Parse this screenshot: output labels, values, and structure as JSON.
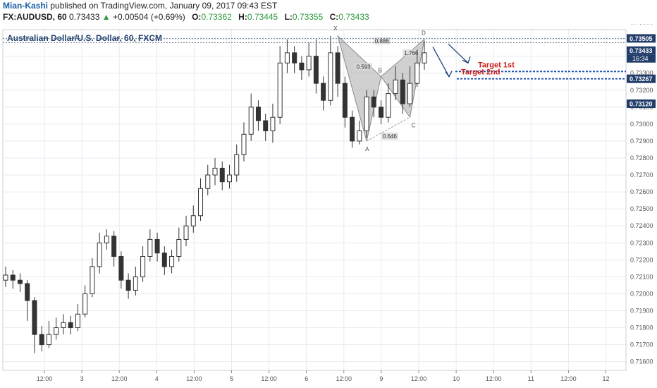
{
  "header": {
    "author": "Mian-Kashi",
    "published": "published on TradingView.com, January 09, 2017 09:43 EST",
    "symbol": "FX:AUDUSD, 60",
    "last": "0.73433",
    "arrow": "▲",
    "change": "+0.00504 (+0.69%)",
    "o_label": "O:",
    "o": "0.73362",
    "h_label": "H:",
    "h": "0.73445",
    "l_label": "L:",
    "l": "0.73355",
    "c_label": "C:",
    "c": "0.73433"
  },
  "colors": {
    "grid": "#e6ebf0",
    "candle_body": "#ffffff",
    "candle_outline": "#333333",
    "pattern_fill": "#a9a9a9",
    "target_line": "#1e4fb0",
    "annotation_text": "#d0201e",
    "arrow": "#1c3f78",
    "price_tag": "#223d6a",
    "axis_text": "#555555"
  },
  "chart_data": {
    "type": "candlestick",
    "title": "Australian Dollar/U.S. Dollar, 60, FXCM",
    "ylim": [
      0.7164,
      0.7354
    ],
    "y_ticks": [
      "0.73600",
      "0.73500",
      "0.73400",
      "0.73300",
      "0.73200",
      "0.73100",
      "0.73000",
      "0.72900",
      "0.72800",
      "0.72700",
      "0.72600",
      "0.72500",
      "0.72400",
      "0.72300",
      "0.72200",
      "0.72100",
      "0.72000",
      "0.71900",
      "0.71800",
      "0.71700",
      "0.71600"
    ],
    "x_ticks": [
      "12:00",
      "3",
      "12:00",
      "4",
      "12:00",
      "5",
      "12:00",
      "6",
      "12:00",
      "9",
      "12:00",
      "10",
      "12:00",
      "11",
      "12:00",
      "12"
    ],
    "candles": [
      {
        "o": 0.7208,
        "c": 0.7211,
        "h": 0.7216,
        "l": 0.7204
      },
      {
        "o": 0.7211,
        "c": 0.7208,
        "h": 0.7214,
        "l": 0.7203
      },
      {
        "o": 0.7208,
        "c": 0.7206,
        "h": 0.7212,
        "l": 0.7201
      },
      {
        "o": 0.7206,
        "c": 0.7196,
        "h": 0.7208,
        "l": 0.7184
      },
      {
        "o": 0.7196,
        "c": 0.7176,
        "h": 0.7198,
        "l": 0.7165
      },
      {
        "o": 0.7176,
        "c": 0.717,
        "h": 0.7181,
        "l": 0.7166
      },
      {
        "o": 0.717,
        "c": 0.7176,
        "h": 0.7184,
        "l": 0.7168
      },
      {
        "o": 0.7176,
        "c": 0.718,
        "h": 0.7186,
        "l": 0.7173
      },
      {
        "o": 0.718,
        "c": 0.7183,
        "h": 0.7188,
        "l": 0.7176
      },
      {
        "o": 0.7183,
        "c": 0.718,
        "h": 0.7187,
        "l": 0.7176
      },
      {
        "o": 0.718,
        "c": 0.7188,
        "h": 0.7194,
        "l": 0.7178
      },
      {
        "o": 0.7188,
        "c": 0.72,
        "h": 0.7205,
        "l": 0.7186
      },
      {
        "o": 0.72,
        "c": 0.7216,
        "h": 0.7221,
        "l": 0.7198
      },
      {
        "o": 0.7216,
        "c": 0.723,
        "h": 0.7236,
        "l": 0.7212
      },
      {
        "o": 0.723,
        "c": 0.7234,
        "h": 0.7238,
        "l": 0.7226
      },
      {
        "o": 0.7234,
        "c": 0.7222,
        "h": 0.7237,
        "l": 0.7216
      },
      {
        "o": 0.7222,
        "c": 0.7208,
        "h": 0.7225,
        "l": 0.7203
      },
      {
        "o": 0.7208,
        "c": 0.7202,
        "h": 0.7212,
        "l": 0.7197
      },
      {
        "o": 0.7202,
        "c": 0.721,
        "h": 0.7216,
        "l": 0.7199
      },
      {
        "o": 0.721,
        "c": 0.7222,
        "h": 0.7228,
        "l": 0.7207
      },
      {
        "o": 0.7222,
        "c": 0.7232,
        "h": 0.7238,
        "l": 0.7219
      },
      {
        "o": 0.7232,
        "c": 0.7224,
        "h": 0.7236,
        "l": 0.7219
      },
      {
        "o": 0.7224,
        "c": 0.7216,
        "h": 0.7228,
        "l": 0.7211
      },
      {
        "o": 0.7216,
        "c": 0.7222,
        "h": 0.7226,
        "l": 0.7212
      },
      {
        "o": 0.7222,
        "c": 0.7232,
        "h": 0.7239,
        "l": 0.7219
      },
      {
        "o": 0.7232,
        "c": 0.724,
        "h": 0.7246,
        "l": 0.7228
      },
      {
        "o": 0.724,
        "c": 0.7246,
        "h": 0.7252,
        "l": 0.7236
      },
      {
        "o": 0.7246,
        "c": 0.7262,
        "h": 0.7268,
        "l": 0.7243
      },
      {
        "o": 0.7262,
        "c": 0.727,
        "h": 0.7276,
        "l": 0.7258
      },
      {
        "o": 0.727,
        "c": 0.7274,
        "h": 0.728,
        "l": 0.7264
      },
      {
        "o": 0.7274,
        "c": 0.7266,
        "h": 0.7278,
        "l": 0.7261
      },
      {
        "o": 0.7266,
        "c": 0.727,
        "h": 0.7276,
        "l": 0.7262
      },
      {
        "o": 0.727,
        "c": 0.7282,
        "h": 0.7288,
        "l": 0.7266
      },
      {
        "o": 0.7282,
        "c": 0.7294,
        "h": 0.7301,
        "l": 0.7278
      },
      {
        "o": 0.7294,
        "c": 0.731,
        "h": 0.7318,
        "l": 0.729
      },
      {
        "o": 0.731,
        "c": 0.7302,
        "h": 0.7314,
        "l": 0.7296
      },
      {
        "o": 0.7302,
        "c": 0.7296,
        "h": 0.7306,
        "l": 0.729
      },
      {
        "o": 0.7296,
        "c": 0.7304,
        "h": 0.7312,
        "l": 0.7289
      },
      {
        "o": 0.7304,
        "c": 0.7336,
        "h": 0.7346,
        "l": 0.73
      },
      {
        "o": 0.7336,
        "c": 0.7342,
        "h": 0.735,
        "l": 0.733
      },
      {
        "o": 0.7342,
        "c": 0.7336,
        "h": 0.7346,
        "l": 0.733
      },
      {
        "o": 0.7336,
        "c": 0.7332,
        "h": 0.734,
        "l": 0.7326
      },
      {
        "o": 0.7332,
        "c": 0.734,
        "h": 0.7348,
        "l": 0.7328
      },
      {
        "o": 0.734,
        "c": 0.7324,
        "h": 0.735,
        "l": 0.7318
      },
      {
        "o": 0.7324,
        "c": 0.7314,
        "h": 0.7328,
        "l": 0.7308
      },
      {
        "o": 0.7314,
        "c": 0.7342,
        "h": 0.7352,
        "l": 0.7311
      },
      {
        "o": 0.7342,
        "c": 0.7324,
        "h": 0.7346,
        "l": 0.7316
      },
      {
        "o": 0.7324,
        "c": 0.7304,
        "h": 0.7328,
        "l": 0.7298
      },
      {
        "o": 0.7304,
        "c": 0.729,
        "h": 0.7308,
        "l": 0.7286
      },
      {
        "o": 0.729,
        "c": 0.7296,
        "h": 0.7302,
        "l": 0.7288
      },
      {
        "o": 0.7296,
        "c": 0.7316,
        "h": 0.732,
        "l": 0.7292
      },
      {
        "o": 0.7316,
        "c": 0.731,
        "h": 0.732,
        "l": 0.7304
      },
      {
        "o": 0.731,
        "c": 0.7304,
        "h": 0.7314,
        "l": 0.73
      },
      {
        "o": 0.7304,
        "c": 0.7318,
        "h": 0.7324,
        "l": 0.7301
      },
      {
        "o": 0.7318,
        "c": 0.7326,
        "h": 0.7334,
        "l": 0.7314
      },
      {
        "o": 0.7326,
        "c": 0.7312,
        "h": 0.733,
        "l": 0.7306
      },
      {
        "o": 0.7312,
        "c": 0.7324,
        "h": 0.7334,
        "l": 0.731
      },
      {
        "o": 0.7324,
        "c": 0.7336,
        "h": 0.7344,
        "l": 0.7322
      },
      {
        "o": 0.7336,
        "c": 0.7342,
        "h": 0.7349,
        "l": 0.7332
      }
    ],
    "levels": [
      {
        "name": "Target 1st",
        "value": 0.7331
      },
      {
        "name": "Target 2nd",
        "value": 0.73267
      }
    ],
    "price_labels": {
      "resistance": 0.73505,
      "current": 0.73433,
      "countdown": "16:34",
      "target_2nd": 0.73267,
      "cursor": 0.7312
    },
    "pattern": {
      "points": [
        {
          "label": "X",
          "value": 0.7352
        },
        {
          "label": "A",
          "value": 0.729
        },
        {
          "label": "B",
          "value": 0.7328
        },
        {
          "label": "C",
          "value": 0.7304
        },
        {
          "label": "D",
          "value": 0.735
        }
      ],
      "ratios": [
        "0.886",
        "0.593",
        "0.646",
        "1.766"
      ]
    }
  }
}
